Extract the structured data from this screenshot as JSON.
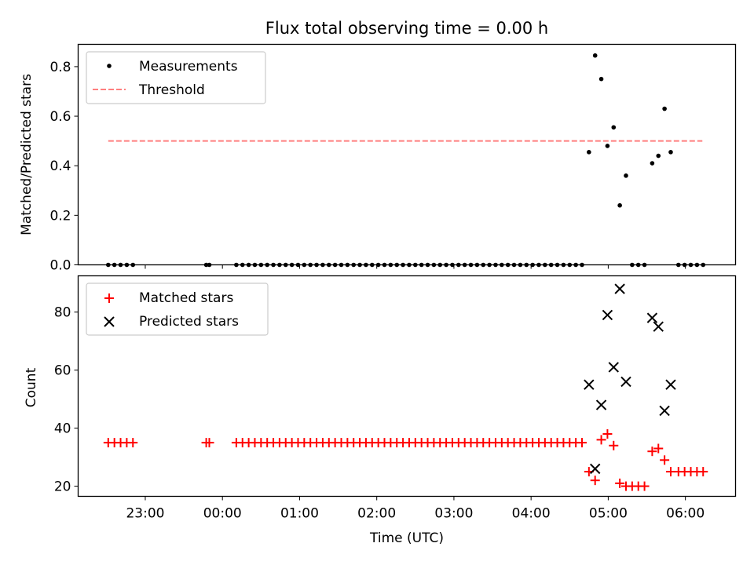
{
  "chart_data": [
    {
      "type": "scatter",
      "title": "Flux total observing time = 0.00 h",
      "xlabel": "",
      "ylabel": "Matched/Predicted stars",
      "ylim": [
        0,
        0.89
      ],
      "yticks": [
        "0.0",
        "0.2",
        "0.4",
        "0.6",
        "0.8"
      ],
      "xlim_hours": [
        -1.87,
        6.65
      ],
      "legend": {
        "placement": "top-left",
        "entries": [
          "Measurements",
          "Threshold"
        ]
      },
      "threshold": {
        "name": "Threshold",
        "value": 0.5,
        "x_start": -1.48,
        "x_end": 6.22,
        "color": "#ff7f7f"
      },
      "series": [
        {
          "name": "Measurements",
          "color": "#000000",
          "points": [
            [
              -1.48,
              0
            ],
            [
              -1.4,
              0
            ],
            [
              -1.32,
              0
            ],
            [
              -1.24,
              0
            ],
            [
              -1.16,
              0
            ],
            [
              -0.21,
              0
            ],
            [
              -0.17,
              0
            ],
            [
              0.18,
              0
            ],
            [
              0.26,
              0
            ],
            [
              0.34,
              0
            ],
            [
              0.42,
              0
            ],
            [
              0.5,
              0
            ],
            [
              0.58,
              0
            ],
            [
              0.66,
              0
            ],
            [
              0.74,
              0
            ],
            [
              0.82,
              0
            ],
            [
              0.9,
              0
            ],
            [
              0.98,
              0
            ],
            [
              1.06,
              0
            ],
            [
              1.14,
              0
            ],
            [
              1.22,
              0
            ],
            [
              1.3,
              0
            ],
            [
              1.38,
              0
            ],
            [
              1.46,
              0
            ],
            [
              1.54,
              0
            ],
            [
              1.62,
              0
            ],
            [
              1.7,
              0
            ],
            [
              1.78,
              0
            ],
            [
              1.86,
              0
            ],
            [
              1.94,
              0
            ],
            [
              2.02,
              0
            ],
            [
              2.1,
              0
            ],
            [
              2.18,
              0
            ],
            [
              2.26,
              0
            ],
            [
              2.34,
              0
            ],
            [
              2.42,
              0
            ],
            [
              2.5,
              0
            ],
            [
              2.58,
              0
            ],
            [
              2.66,
              0
            ],
            [
              2.74,
              0
            ],
            [
              2.82,
              0
            ],
            [
              2.9,
              0
            ],
            [
              2.98,
              0
            ],
            [
              3.06,
              0
            ],
            [
              3.14,
              0
            ],
            [
              3.22,
              0
            ],
            [
              3.3,
              0
            ],
            [
              3.38,
              0
            ],
            [
              3.46,
              0
            ],
            [
              3.54,
              0
            ],
            [
              3.62,
              0
            ],
            [
              3.7,
              0
            ],
            [
              3.78,
              0
            ],
            [
              3.86,
              0
            ],
            [
              3.94,
              0
            ],
            [
              4.02,
              0
            ],
            [
              4.1,
              0
            ],
            [
              4.18,
              0
            ],
            [
              4.26,
              0
            ],
            [
              4.34,
              0
            ],
            [
              4.42,
              0
            ],
            [
              4.5,
              0
            ],
            [
              4.58,
              0
            ],
            [
              4.66,
              0
            ],
            [
              4.75,
              0.455
            ],
            [
              4.83,
              0.845
            ],
            [
              4.91,
              0.75
            ],
            [
              4.99,
              0.48
            ],
            [
              5.07,
              0.555
            ],
            [
              5.15,
              0.24
            ],
            [
              5.23,
              0.36
            ],
            [
              5.31,
              0
            ],
            [
              5.39,
              0
            ],
            [
              5.47,
              0
            ],
            [
              5.57,
              0.41
            ],
            [
              5.65,
              0.44
            ],
            [
              5.73,
              0.63
            ],
            [
              5.81,
              0.455
            ],
            [
              5.91,
              0
            ],
            [
              5.99,
              0
            ],
            [
              6.07,
              0
            ],
            [
              6.15,
              0
            ],
            [
              6.23,
              0
            ]
          ]
        }
      ]
    },
    {
      "type": "scatter",
      "title": "",
      "xlabel": "Time (UTC)",
      "ylabel": "Count",
      "ylim": [
        16.5,
        92.5
      ],
      "yticks": [
        "20",
        "40",
        "60",
        "80"
      ],
      "xlim_hours": [
        -1.87,
        6.65
      ],
      "xticks": [
        {
          "hour": -1,
          "label": "23:00"
        },
        {
          "hour": 0,
          "label": "00:00"
        },
        {
          "hour": 1,
          "label": "01:00"
        },
        {
          "hour": 2,
          "label": "02:00"
        },
        {
          "hour": 3,
          "label": "03:00"
        },
        {
          "hour": 4,
          "label": "04:00"
        },
        {
          "hour": 5,
          "label": "05:00"
        },
        {
          "hour": 6,
          "label": "06:00"
        }
      ],
      "legend": {
        "placement": "top-left",
        "entries": [
          "Matched stars",
          "Predicted stars"
        ]
      },
      "series": [
        {
          "name": "Matched stars",
          "color": "#ff0000",
          "marker": "+",
          "points": [
            [
              -1.48,
              35
            ],
            [
              -1.4,
              35
            ],
            [
              -1.32,
              35
            ],
            [
              -1.24,
              35
            ],
            [
              -1.16,
              35
            ],
            [
              -0.21,
              35
            ],
            [
              -0.17,
              35
            ],
            [
              0.18,
              35
            ],
            [
              0.26,
              35
            ],
            [
              0.34,
              35
            ],
            [
              0.42,
              35
            ],
            [
              0.5,
              35
            ],
            [
              0.58,
              35
            ],
            [
              0.66,
              35
            ],
            [
              0.74,
              35
            ],
            [
              0.82,
              35
            ],
            [
              0.9,
              35
            ],
            [
              0.98,
              35
            ],
            [
              1.06,
              35
            ],
            [
              1.14,
              35
            ],
            [
              1.22,
              35
            ],
            [
              1.3,
              35
            ],
            [
              1.38,
              35
            ],
            [
              1.46,
              35
            ],
            [
              1.54,
              35
            ],
            [
              1.62,
              35
            ],
            [
              1.7,
              35
            ],
            [
              1.78,
              35
            ],
            [
              1.86,
              35
            ],
            [
              1.94,
              35
            ],
            [
              2.02,
              35
            ],
            [
              2.1,
              35
            ],
            [
              2.18,
              35
            ],
            [
              2.26,
              35
            ],
            [
              2.34,
              35
            ],
            [
              2.42,
              35
            ],
            [
              2.5,
              35
            ],
            [
              2.58,
              35
            ],
            [
              2.66,
              35
            ],
            [
              2.74,
              35
            ],
            [
              2.82,
              35
            ],
            [
              2.9,
              35
            ],
            [
              2.98,
              35
            ],
            [
              3.06,
              35
            ],
            [
              3.14,
              35
            ],
            [
              3.22,
              35
            ],
            [
              3.3,
              35
            ],
            [
              3.38,
              35
            ],
            [
              3.46,
              35
            ],
            [
              3.54,
              35
            ],
            [
              3.62,
              35
            ],
            [
              3.7,
              35
            ],
            [
              3.78,
              35
            ],
            [
              3.86,
              35
            ],
            [
              3.94,
              35
            ],
            [
              4.02,
              35
            ],
            [
              4.1,
              35
            ],
            [
              4.18,
              35
            ],
            [
              4.26,
              35
            ],
            [
              4.34,
              35
            ],
            [
              4.42,
              35
            ],
            [
              4.5,
              35
            ],
            [
              4.58,
              35
            ],
            [
              4.66,
              35
            ],
            [
              4.75,
              25
            ],
            [
              4.83,
              22
            ],
            [
              4.91,
              36
            ],
            [
              4.99,
              38
            ],
            [
              5.07,
              34
            ],
            [
              5.15,
              21
            ],
            [
              5.23,
              20
            ],
            [
              5.31,
              20
            ],
            [
              5.39,
              20
            ],
            [
              5.47,
              20
            ],
            [
              5.57,
              32
            ],
            [
              5.65,
              33
            ],
            [
              5.73,
              29
            ],
            [
              5.81,
              25
            ],
            [
              5.91,
              25
            ],
            [
              5.99,
              25
            ],
            [
              6.07,
              25
            ],
            [
              6.15,
              25
            ],
            [
              6.23,
              25
            ]
          ]
        },
        {
          "name": "Predicted stars",
          "color": "#000000",
          "marker": "x",
          "points": [
            [
              4.75,
              55
            ],
            [
              4.83,
              26
            ],
            [
              4.91,
              48
            ],
            [
              4.99,
              79
            ],
            [
              5.07,
              61
            ],
            [
              5.15,
              88
            ],
            [
              5.23,
              56
            ],
            [
              5.57,
              78
            ],
            [
              5.65,
              75
            ],
            [
              5.73,
              46
            ],
            [
              5.81,
              55
            ]
          ]
        }
      ]
    }
  ]
}
